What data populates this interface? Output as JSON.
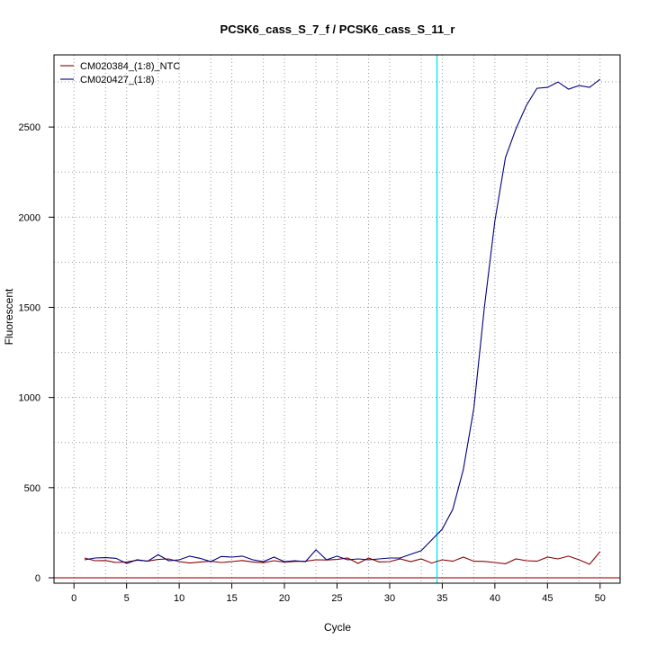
{
  "chart_data": {
    "type": "line",
    "title": "PCSK6_cass_S_7_f / PCSK6_cass_S_11_r",
    "xlabel": "Cycle",
    "ylabel": "Fluorescent",
    "xlim": [
      -1.9,
      51.9
    ],
    "ylim": [
      -30,
      2900
    ],
    "x_ticks": [
      0,
      5,
      10,
      15,
      20,
      25,
      30,
      35,
      40,
      45,
      50
    ],
    "y_ticks": [
      0,
      500,
      1000,
      1500,
      2000,
      2500
    ],
    "x_grid": [
      3,
      8,
      13,
      18,
      23,
      28,
      33,
      38,
      43,
      48
    ],
    "y_grid": [
      250,
      750,
      1250,
      1750,
      2250,
      2750
    ],
    "grid": true,
    "legend_position": "top-left",
    "threshold": {
      "type": "vertical",
      "x": 34.5,
      "color": "#00e5ee"
    },
    "baseline": {
      "type": "horizontal",
      "y": 0,
      "color": "#b22222"
    },
    "x": [
      1,
      2,
      3,
      4,
      5,
      6,
      7,
      8,
      9,
      10,
      11,
      12,
      13,
      14,
      15,
      16,
      17,
      18,
      19,
      20,
      21,
      22,
      23,
      24,
      25,
      26,
      27,
      28,
      29,
      30,
      31,
      32,
      33,
      34,
      35,
      36,
      37,
      38,
      39,
      40,
      41,
      42,
      43,
      44,
      45,
      46,
      47,
      48,
      49,
      50
    ],
    "series": [
      {
        "name": "CM020384_(1:8)_NTC",
        "color": "#8b0000",
        "values": [
          110,
          95,
          96,
          85,
          88,
          98,
          93,
          102,
          105,
          90,
          82,
          88,
          92,
          85,
          90,
          96,
          88,
          84,
          95,
          87,
          91,
          92,
          100,
          99,
          102,
          110,
          80,
          110,
          88,
          90,
          105,
          90,
          105,
          82,
          100,
          92,
          115,
          92,
          91,
          85,
          78,
          105,
          95,
          92,
          115,
          105,
          120,
          100,
          75,
          145
        ]
      },
      {
        "name": "CM020427_(1:8)",
        "color": "#000080",
        "values": [
          100,
          110,
          112,
          108,
          80,
          100,
          92,
          128,
          95,
          100,
          120,
          108,
          90,
          118,
          115,
          120,
          100,
          90,
          115,
          90,
          95,
          90,
          155,
          100,
          120,
          100,
          105,
          100,
          105,
          110,
          110,
          130,
          150,
          210,
          270,
          380,
          600,
          940,
          1500,
          1980,
          2330,
          2490,
          2620,
          2715,
          2720,
          2750,
          2710,
          2730,
          2720,
          2765
        ]
      }
    ]
  }
}
